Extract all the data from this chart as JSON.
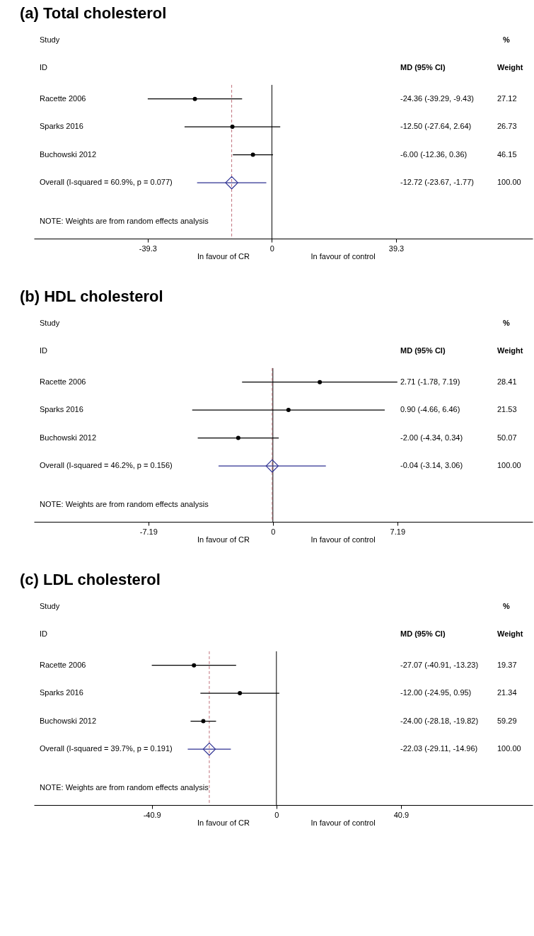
{
  "chart_data": [
    {
      "type": "scatter",
      "title": "(a) Total cholesterol",
      "orientation": "horizontal",
      "grid": false,
      "categories": [
        "Racette 2006",
        "Sparks 2016",
        "Buchowski 2012",
        "Overall  (I-squared = 60.9%, p = 0.077)"
      ],
      "series": [
        {
          "color": "#000000",
          "marker": "circle",
          "values": [
            -24.36,
            -12.5,
            -6.0,
            null
          ],
          "errors": [
            [
              -39.29,
              -9.43
            ],
            [
              -27.64,
              2.64
            ],
            [
              -12.36,
              0.36
            ],
            null
          ]
        },
        {
          "color": "#2e3192",
          "marker": "diamond",
          "values": [
            null,
            null,
            null,
            -12.72
          ],
          "errors": [
            null,
            null,
            null,
            [
              -23.67,
              -1.77
            ]
          ]
        }
      ],
      "xlim": [
        -75.3,
        82.5
      ],
      "xticks": [
        -39.3,
        0,
        39.3
      ],
      "ref_lines": [
        {
          "axis": "x",
          "value": 0,
          "color": "#000000",
          "line_style": "solid"
        },
        {
          "axis": "x",
          "value": -12.72,
          "color": "#c0707a",
          "line_style": "dashed"
        }
      ],
      "annotations": [
        "Study",
        "ID",
        "MD (95% CI)",
        "%",
        "Weight",
        "NOTE: Weights are from random effects analysis",
        "-24.36 (-39.29, -9.43)",
        "-12.50 (-27.64, 2.64)",
        "-6.00 (-12.36, 0.36)",
        "-12.72 (-23.67, -1.77)",
        "27.12",
        "26.73",
        "46.15",
        "100.00",
        "In favour of CR",
        "In favour of control"
      ]
    },
    {
      "type": "scatter",
      "title": "(b) HDL cholesterol",
      "orientation": "horizontal",
      "grid": false,
      "categories": [
        "Racette 2006",
        "Sparks 2016",
        "Buchowski 2012",
        "Overall  (I-squared = 46.2%, p = 0.156)"
      ],
      "series": [
        {
          "color": "#000000",
          "marker": "circle",
          "values": [
            2.71,
            0.9,
            -2.0,
            null
          ],
          "errors": [
            [
              -1.78,
              7.19
            ],
            [
              -4.66,
              6.46
            ],
            [
              -4.34,
              0.34
            ],
            null
          ]
        },
        {
          "color": "#2e3192",
          "marker": "diamond",
          "values": [
            null,
            null,
            null,
            -0.04
          ],
          "errors": [
            null,
            null,
            null,
            [
              -3.14,
              3.06
            ]
          ]
        }
      ],
      "xlim": [
        -13.8,
        15.0
      ],
      "xticks": [
        -7.19,
        0,
        7.19
      ],
      "ref_lines": [
        {
          "axis": "x",
          "value": 0,
          "color": "#000000",
          "line_style": "solid"
        },
        {
          "axis": "x",
          "value": -0.04,
          "color": "#c0707a",
          "line_style": "dashed"
        }
      ],
      "annotations": [
        "Study",
        "ID",
        "MD (95% CI)",
        "%",
        "Weight",
        "NOTE: Weights are from random effects analysis",
        "2.71 (-1.78, 7.19)",
        "0.90 (-4.66, 6.46)",
        "-2.00 (-4.34, 0.34)",
        "-0.04 (-3.14, 3.06)",
        "28.41",
        "21.53",
        "50.07",
        "100.00",
        "In favour of CR",
        "In favour of control"
      ]
    },
    {
      "type": "scatter",
      "title": "(c) LDL cholesterol",
      "orientation": "horizontal",
      "grid": false,
      "categories": [
        "Racette 2006",
        "Sparks 2016",
        "Buchowski 2012",
        "Overall  (I-squared = 39.7%, p = 0.191)"
      ],
      "series": [
        {
          "color": "#000000",
          "marker": "circle",
          "values": [
            -27.07,
            -12.0,
            -24.0,
            null
          ],
          "errors": [
            [
              -40.91,
              -13.23
            ],
            [
              -24.95,
              0.95
            ],
            [
              -28.18,
              -19.82
            ],
            null
          ]
        },
        {
          "color": "#2e3192",
          "marker": "diamond",
          "values": [
            null,
            null,
            null,
            -22.03
          ],
          "errors": [
            null,
            null,
            null,
            [
              -29.11,
              -14.96
            ]
          ]
        }
      ],
      "xlim": [
        -79.6,
        84.1
      ],
      "xticks": [
        -40.9,
        0,
        40.9
      ],
      "ref_lines": [
        {
          "axis": "x",
          "value": 0,
          "color": "#000000",
          "line_style": "solid"
        },
        {
          "axis": "x",
          "value": -22.03,
          "color": "#c0707a",
          "line_style": "dashed"
        }
      ],
      "annotations": [
        "Study",
        "ID",
        "MD (95% CI)",
        "%",
        "Weight",
        "NOTE: Weights are from random effects analysis",
        "-27.07 (-40.91, -13.23)",
        "-12.00 (-24.95, 0.95)",
        "-24.00 (-28.18, -19.82)",
        "-22.03 (-29.11, -14.96)",
        "19.37",
        "21.34",
        "59.29",
        "100.00",
        "In favour of CR",
        "In favour of control"
      ]
    }
  ]
}
